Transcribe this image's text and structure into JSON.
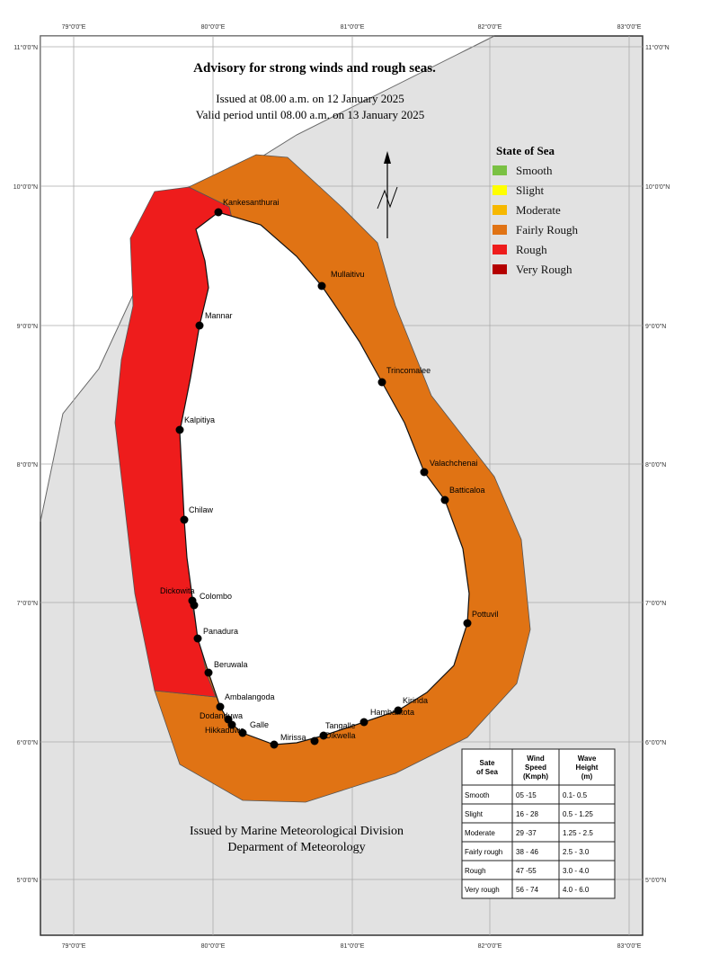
{
  "header": {
    "title": "Advisory for strong winds and rough seas.",
    "issued": "Issued at 08.00 a.m. on 12 January 2025",
    "valid": "Valid period until 08.00 a.m. on 13 January 2025"
  },
  "axes": {
    "longitudes": [
      "79°0'0\"E",
      "80°0'0\"E",
      "81°0'0\"E",
      "82°0'0\"E",
      "83°0'0\"E"
    ],
    "latitudes": [
      "11°0'0\"N",
      "10°0'0\"N",
      "9°0'0\"N",
      "8°0'0\"N",
      "7°0'0\"N",
      "6°0'0\"N",
      "5°0'0\"N"
    ]
  },
  "legend": {
    "title": "State of Sea",
    "items": [
      {
        "label": "Smooth",
        "color": "#7ac143"
      },
      {
        "label": "Slight",
        "color": "#ffff00"
      },
      {
        "label": "Moderate",
        "color": "#f6b800"
      },
      {
        "label": "Fairly Rough",
        "color": "#e07314"
      },
      {
        "label": "Rough",
        "color": "#ee1c1c"
      },
      {
        "label": "Very Rough",
        "color": "#b40000"
      }
    ]
  },
  "places": [
    "Kankesanthurai",
    "Mullaitivu",
    "Mannar",
    "Trincomalee",
    "Kalpitiya",
    "Valachchenai",
    "Batticaloa",
    "Chilaw",
    "Dickowita",
    "Colombo",
    "Panadura",
    "Beruwala",
    "Pottuvil",
    "Ambalangoda",
    "Dodanduwa",
    "Hikkaduwa",
    "Galle",
    "Mirissa",
    "Tangalle",
    "Dikwella",
    "Hambantota",
    "Kirinda"
  ],
  "table": {
    "header": [
      "Sate of Sea",
      "Wind Speed (Kmph)",
      "Wave Height (m)"
    ],
    "rows": [
      [
        "Smooth",
        "05 -15",
        "0.1- 0.5"
      ],
      [
        "Slight",
        "16 - 28",
        "0.5 - 1.25"
      ],
      [
        "Moderate",
        "29 -37",
        "1.25 - 2.5"
      ],
      [
        "Fairly rough",
        "38 - 46",
        "2.5 - 3.0"
      ],
      [
        "Rough",
        "47 -55",
        "3.0 - 4.0"
      ],
      [
        "Very rough",
        "56 - 74",
        "4.0 - 6.0"
      ]
    ]
  },
  "footer": {
    "division": "Issued by Marine Meteorological Division",
    "department": "Deparment of Meteorology"
  }
}
